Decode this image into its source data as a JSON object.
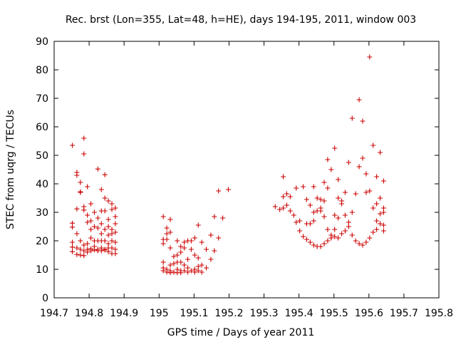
{
  "chart_data": {
    "type": "scatter",
    "title": "Rec. brst (Lon=355, Lat=48, h=HE), days 194-195, 2011, window 003",
    "xlabel": "GPS time / Days of year 2011",
    "ylabel": "STEC from uqrg / TECUs",
    "xlim": [
      194.7,
      195.8
    ],
    "ylim": [
      0,
      90
    ],
    "xticks": [
      "194.7",
      "194.8",
      "194.9",
      "195",
      "195.1",
      "195.2",
      "195.3",
      "195.4",
      "195.5",
      "195.6",
      "195.7",
      "195.8"
    ],
    "yticks": [
      "0",
      "10",
      "20",
      "30",
      "40",
      "50",
      "60",
      "70",
      "80",
      "90"
    ],
    "grid": false,
    "marker": "+",
    "color": "#cc0000",
    "series": [
      {
        "name": "STEC",
        "points": [
          [
            194.752,
            53.5
          ],
          [
            194.752,
            26.2
          ],
          [
            194.752,
            24.8
          ],
          [
            194.752,
            19.5
          ],
          [
            194.752,
            17.8
          ],
          [
            194.752,
            16.2
          ],
          [
            194.765,
            44.0
          ],
          [
            194.765,
            43.0
          ],
          [
            194.765,
            31.2
          ],
          [
            194.765,
            22.5
          ],
          [
            194.765,
            17.5
          ],
          [
            194.765,
            15.2
          ],
          [
            194.775,
            40.5
          ],
          [
            194.775,
            37.2
          ],
          [
            194.775,
            37.0
          ],
          [
            194.775,
            20.0
          ],
          [
            194.775,
            17.0
          ],
          [
            194.775,
            15.0
          ],
          [
            194.785,
            56.0
          ],
          [
            194.785,
            50.5
          ],
          [
            194.785,
            32.0
          ],
          [
            194.785,
            30.8
          ],
          [
            194.785,
            18.5
          ],
          [
            194.785,
            16.5
          ],
          [
            194.785,
            14.8
          ],
          [
            194.795,
            39.0
          ],
          [
            194.795,
            29.0
          ],
          [
            194.795,
            26.5
          ],
          [
            194.795,
            19.0
          ],
          [
            194.795,
            17.0
          ],
          [
            194.795,
            16.0
          ],
          [
            194.805,
            33.0
          ],
          [
            194.805,
            27.0
          ],
          [
            194.805,
            24.0
          ],
          [
            194.805,
            21.0
          ],
          [
            194.805,
            17.2
          ],
          [
            194.805,
            16.5
          ],
          [
            194.815,
            30.0
          ],
          [
            194.815,
            25.0
          ],
          [
            194.815,
            20.0
          ],
          [
            194.815,
            18.0
          ],
          [
            194.815,
            16.8
          ],
          [
            194.825,
            45.2
          ],
          [
            194.825,
            28.0
          ],
          [
            194.825,
            24.5
          ],
          [
            194.825,
            20.0
          ],
          [
            194.825,
            17.0
          ],
          [
            194.825,
            16.5
          ],
          [
            194.835,
            38.0
          ],
          [
            194.835,
            30.5
          ],
          [
            194.835,
            26.0
          ],
          [
            194.835,
            22.5
          ],
          [
            194.835,
            20.0
          ],
          [
            194.835,
            17.5
          ],
          [
            194.835,
            16.5
          ],
          [
            194.845,
            43.2
          ],
          [
            194.845,
            35.0
          ],
          [
            194.845,
            30.5
          ],
          [
            194.845,
            24.0
          ],
          [
            194.845,
            20.0
          ],
          [
            194.845,
            17.0
          ],
          [
            194.845,
            16.8
          ],
          [
            194.855,
            34.0
          ],
          [
            194.855,
            27.5
          ],
          [
            194.855,
            25.0
          ],
          [
            194.855,
            22.0
          ],
          [
            194.855,
            19.0
          ],
          [
            194.855,
            17.5
          ],
          [
            194.855,
            16.2
          ],
          [
            194.865,
            33.0
          ],
          [
            194.865,
            31.0
          ],
          [
            194.865,
            24.0
          ],
          [
            194.865,
            22.5
          ],
          [
            194.865,
            20.0
          ],
          [
            194.865,
            17.5
          ],
          [
            194.865,
            15.5
          ],
          [
            194.875,
            31.5
          ],
          [
            194.875,
            28.5
          ],
          [
            194.875,
            26.0
          ],
          [
            194.875,
            23.0
          ],
          [
            194.875,
            19.5
          ],
          [
            194.875,
            17.0
          ],
          [
            194.875,
            15.5
          ],
          [
            195.012,
            28.5
          ],
          [
            195.012,
            20.5
          ],
          [
            195.012,
            19.0
          ],
          [
            195.012,
            12.5
          ],
          [
            195.012,
            10.5
          ],
          [
            195.012,
            9.5
          ],
          [
            195.022,
            24.5
          ],
          [
            195.022,
            22.5
          ],
          [
            195.022,
            20.5
          ],
          [
            195.022,
            10.0
          ],
          [
            195.022,
            9.0
          ],
          [
            195.032,
            27.5
          ],
          [
            195.032,
            23.0
          ],
          [
            195.032,
            17.5
          ],
          [
            195.032,
            11.5
          ],
          [
            195.032,
            9.5
          ],
          [
            195.032,
            8.8
          ],
          [
            195.042,
            14.5
          ],
          [
            195.042,
            12.0
          ],
          [
            195.042,
            9.0
          ],
          [
            195.052,
            20.0
          ],
          [
            195.052,
            15.0
          ],
          [
            195.052,
            12.5
          ],
          [
            195.052,
            10.0
          ],
          [
            195.052,
            8.8
          ],
          [
            195.062,
            18.0
          ],
          [
            195.062,
            16.0
          ],
          [
            195.062,
            12.5
          ],
          [
            195.062,
            9.5
          ],
          [
            195.062,
            8.8
          ],
          [
            195.072,
            19.5
          ],
          [
            195.072,
            17.5
          ],
          [
            195.072,
            11.5
          ],
          [
            195.072,
            9.5
          ],
          [
            195.082,
            20.0
          ],
          [
            195.082,
            13.5
          ],
          [
            195.082,
            10.5
          ],
          [
            195.082,
            9.0
          ],
          [
            195.092,
            20.0
          ],
          [
            195.092,
            17.0
          ],
          [
            195.092,
            9.5
          ],
          [
            195.102,
            21.0
          ],
          [
            195.102,
            15.0
          ],
          [
            195.102,
            10.0
          ],
          [
            195.102,
            9.0
          ],
          [
            195.112,
            25.5
          ],
          [
            195.112,
            14.0
          ],
          [
            195.112,
            11.0
          ],
          [
            195.112,
            9.5
          ],
          [
            195.122,
            19.5
          ],
          [
            195.122,
            11.5
          ],
          [
            195.122,
            9.0
          ],
          [
            195.135,
            17.0
          ],
          [
            195.135,
            10.5
          ],
          [
            195.148,
            22.0
          ],
          [
            195.148,
            13.5
          ],
          [
            195.158,
            28.5
          ],
          [
            195.158,
            16.5
          ],
          [
            195.17,
            37.5
          ],
          [
            195.17,
            21.0
          ],
          [
            195.182,
            28.0
          ],
          [
            195.198,
            38.0
          ],
          [
            195.332,
            32.0
          ],
          [
            195.345,
            31.0
          ],
          [
            195.355,
            42.5
          ],
          [
            195.355,
            35.5
          ],
          [
            195.355,
            31.5
          ],
          [
            195.365,
            36.5
          ],
          [
            195.365,
            32.5
          ],
          [
            195.375,
            35.5
          ],
          [
            195.375,
            30.5
          ],
          [
            195.385,
            29.0
          ],
          [
            195.392,
            38.5
          ],
          [
            195.392,
            26.5
          ],
          [
            195.402,
            27.0
          ],
          [
            195.402,
            23.5
          ],
          [
            195.412,
            39.0
          ],
          [
            195.412,
            21.5
          ],
          [
            195.422,
            34.5
          ],
          [
            195.422,
            26.0
          ],
          [
            195.422,
            20.5
          ],
          [
            195.432,
            32.5
          ],
          [
            195.432,
            26.0
          ],
          [
            195.432,
            19.5
          ],
          [
            195.442,
            39.0
          ],
          [
            195.442,
            30.0
          ],
          [
            195.442,
            27.0
          ],
          [
            195.442,
            18.5
          ],
          [
            195.452,
            35.0
          ],
          [
            195.452,
            30.5
          ],
          [
            195.452,
            18.0
          ],
          [
            195.462,
            34.5
          ],
          [
            195.462,
            31.5
          ],
          [
            195.462,
            30.5
          ],
          [
            195.462,
            18.0
          ],
          [
            195.472,
            40.5
          ],
          [
            195.472,
            34.0
          ],
          [
            195.472,
            28.5
          ],
          [
            195.472,
            19.0
          ],
          [
            195.482,
            48.5
          ],
          [
            195.482,
            38.5
          ],
          [
            195.482,
            24.0
          ],
          [
            195.482,
            20.0
          ],
          [
            195.492,
            45.0
          ],
          [
            195.492,
            22.0
          ],
          [
            195.492,
            21.0
          ],
          [
            195.502,
            52.5
          ],
          [
            195.502,
            29.0
          ],
          [
            195.502,
            24.0
          ],
          [
            195.502,
            21.5
          ],
          [
            195.512,
            41.5
          ],
          [
            195.512,
            35.0
          ],
          [
            195.512,
            28.0
          ],
          [
            195.512,
            21.0
          ],
          [
            195.522,
            34.0
          ],
          [
            195.522,
            33.0
          ],
          [
            195.522,
            22.5
          ],
          [
            195.532,
            37.0
          ],
          [
            195.532,
            29.0
          ],
          [
            195.532,
            23.5
          ],
          [
            195.542,
            47.5
          ],
          [
            195.542,
            26.5
          ],
          [
            195.542,
            25.0
          ],
          [
            195.552,
            63.0
          ],
          [
            195.552,
            30.0
          ],
          [
            195.552,
            22.0
          ],
          [
            195.562,
            36.5
          ],
          [
            195.562,
            20.0
          ],
          [
            195.572,
            69.5
          ],
          [
            195.572,
            46.0
          ],
          [
            195.572,
            19.0
          ],
          [
            195.582,
            62.0
          ],
          [
            195.582,
            49.0
          ],
          [
            195.582,
            18.5
          ],
          [
            195.592,
            43.5
          ],
          [
            195.592,
            37.0
          ],
          [
            195.592,
            19.5
          ],
          [
            195.602,
            84.5
          ],
          [
            195.602,
            37.5
          ],
          [
            195.602,
            21.0
          ],
          [
            195.612,
            53.5
          ],
          [
            195.612,
            31.5
          ],
          [
            195.612,
            23.0
          ],
          [
            195.622,
            42.5
          ],
          [
            195.622,
            33.0
          ],
          [
            195.622,
            27.0
          ],
          [
            195.622,
            24.0
          ],
          [
            195.632,
            51.0
          ],
          [
            195.632,
            35.0
          ],
          [
            195.632,
            29.5
          ],
          [
            195.632,
            26.0
          ],
          [
            195.642,
            41.0
          ],
          [
            195.642,
            31.5
          ],
          [
            195.642,
            30.0
          ],
          [
            195.642,
            25.5
          ],
          [
            195.642,
            23.5
          ]
        ]
      }
    ]
  }
}
